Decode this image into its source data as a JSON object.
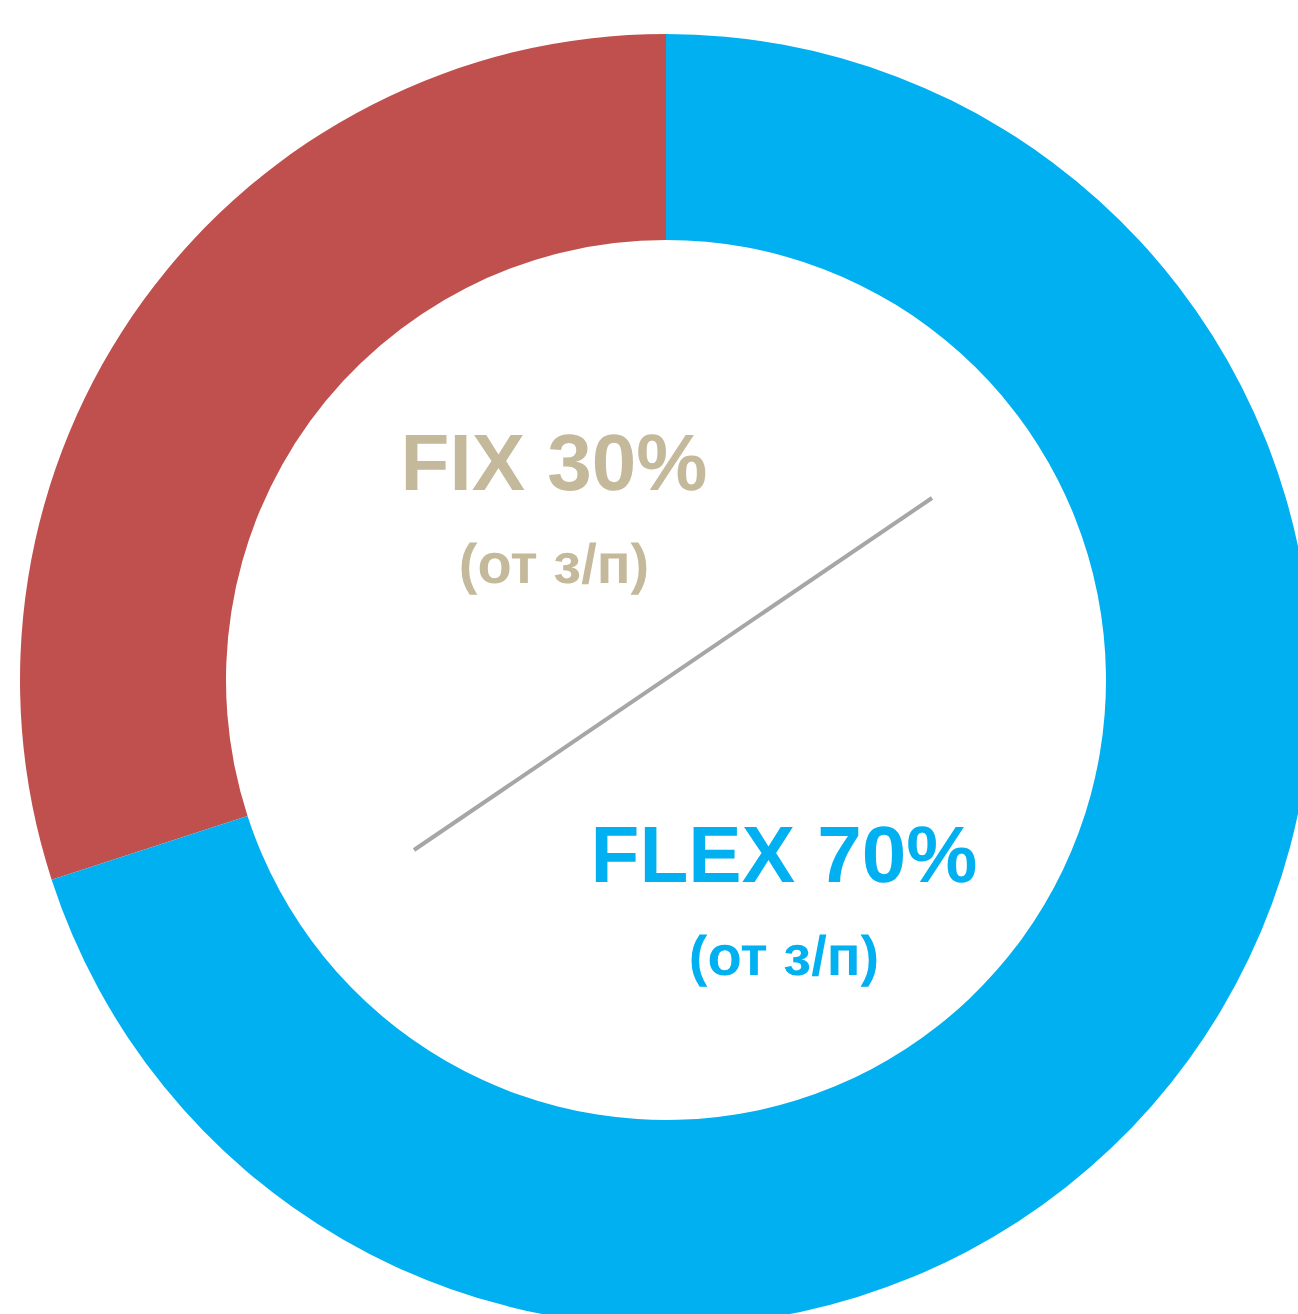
{
  "chart_data": {
    "type": "donut",
    "categories": [
      "FIX",
      "FLEX"
    ],
    "values": [
      30,
      70
    ],
    "colors": [
      "#c0504d",
      "#00b0f0"
    ],
    "value_labels": [
      "30%",
      "70%"
    ],
    "annotations": [
      "(от з/п)",
      "(от з/п)"
    ],
    "legend": false
  }
}
